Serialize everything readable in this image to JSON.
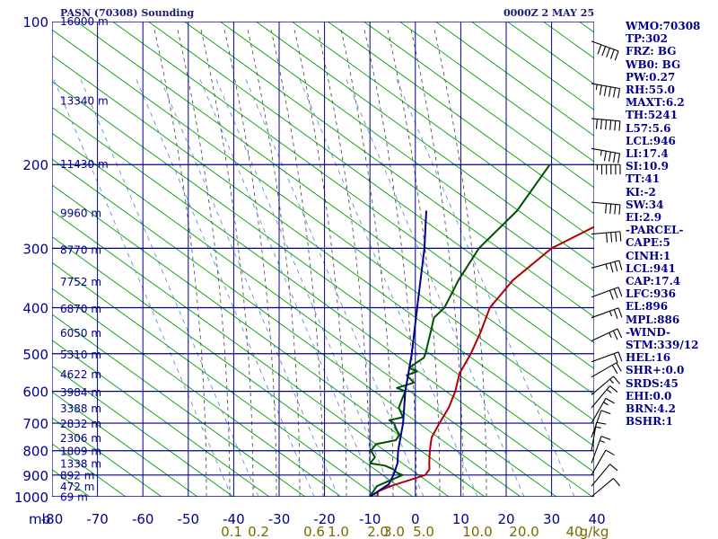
{
  "header": {
    "station": "PASN (70308) Sounding",
    "time": "0000Z  2 MAY 25"
  },
  "stats": [
    "WMO:70308",
    "TP:302",
    "FRZ: BG",
    "WB0: BG",
    "PW:0.27",
    "RH:55.0",
    "MAXT:6.2",
    "TH:5241",
    "L57:5.6",
    "LCL:946",
    "LI:17.4",
    "SI:10.9",
    "TT:41",
    "KI:-2",
    "SW:34",
    "EI:2.9",
    "-PARCEL-",
    "CAPE:5",
    "CINH:1",
    "LCL:941",
    "CAP:17.4",
    "LFC:936",
    "EL:896",
    "MPL:886",
    "-WIND-",
    "STM:339/12",
    "HEL:16",
    "SHR+:0.0",
    "SRDS:45",
    "EHI:0.0",
    "BRN:4.2",
    "BSHR:1"
  ],
  "chart_data": {
    "type": "skew-t",
    "ylabel": "mb",
    "pressure_levels": [
      100,
      200,
      300,
      400,
      500,
      600,
      700,
      800,
      900,
      1000
    ],
    "pressure_labels": [
      "100",
      "200",
      "300",
      "400",
      "500",
      "600",
      "700",
      "800",
      "900",
      "1000"
    ],
    "temperature_ticks": [
      -80,
      -70,
      -60,
      -50,
      -40,
      -30,
      -20,
      -10,
      0,
      10,
      20,
      30,
      40
    ],
    "temperature_labels": [
      "-80",
      "-70",
      "-60",
      "-50",
      "-40",
      "-30",
      "-20",
      "-10",
      "0",
      "10",
      "20",
      "30",
      "40"
    ],
    "xlim": [
      -80,
      40
    ],
    "height_labels": [
      {
        "p": 100,
        "text": "16000 m"
      },
      {
        "p": 147,
        "text": "13340 m"
      },
      {
        "p": 200,
        "text": "11430 m"
      },
      {
        "p": 253,
        "text": "9960 m"
      },
      {
        "p": 303,
        "text": "8770 m"
      },
      {
        "p": 353,
        "text": "7752 m"
      },
      {
        "p": 403,
        "text": "6870 m"
      },
      {
        "p": 453,
        "text": "6050 m"
      },
      {
        "p": 503,
        "text": "5310 m"
      },
      {
        "p": 553,
        "text": "4622 m"
      },
      {
        "p": 603,
        "text": "3984 m"
      },
      {
        "p": 653,
        "text": "3388 m"
      },
      {
        "p": 703,
        "text": "2832 m"
      },
      {
        "p": 753,
        "text": "2306 m"
      },
      {
        "p": 803,
        "text": "1809 m"
      },
      {
        "p": 853,
        "text": "1338 m"
      },
      {
        "p": 903,
        "text": "892 m"
      },
      {
        "p": 953,
        "text": "472 m"
      },
      {
        "p": 1003,
        "text": "69 m"
      }
    ],
    "mixing_ratio_labels": [
      {
        "w": 0.1,
        "text": "0.1"
      },
      {
        "w": 0.2,
        "text": "0.2"
      },
      {
        "w": 0.6,
        "text": "0.6"
      },
      {
        "w": 1.0,
        "text": "1.0"
      },
      {
        "w": 2.0,
        "text": "2.0"
      },
      {
        "w": 3.0,
        "text": "3.0"
      },
      {
        "w": 5.0,
        "text": "5.0"
      },
      {
        "w": 10.0,
        "text": "10.0"
      },
      {
        "w": 20.0,
        "text": "20.0"
      },
      {
        "w": 40.0,
        "text": "40"
      },
      {
        "unit": "g/kg",
        "text": "g/kg"
      }
    ],
    "mixing_ratio_values": [
      0.1,
      0.2,
      0.6,
      1.0,
      2.0,
      3.0,
      5.0,
      10.0,
      20.0,
      40.0
    ],
    "series": [
      {
        "name": "temperature",
        "color": "#b00000",
        "points": [
          [
            1005,
            -8
          ],
          [
            975,
            -10
          ],
          [
            950,
            -9
          ],
          [
            925,
            -7
          ],
          [
            900,
            -5
          ],
          [
            875,
            -6
          ],
          [
            850,
            -8
          ],
          [
            825,
            -10
          ],
          [
            800,
            -12
          ],
          [
            775,
            -14
          ],
          [
            750,
            -16
          ],
          [
            700,
            -19
          ],
          [
            650,
            -22
          ],
          [
            600,
            -26
          ],
          [
            550,
            -31
          ],
          [
            500,
            -35
          ],
          [
            450,
            -40
          ],
          [
            400,
            -46
          ],
          [
            350,
            -50
          ],
          [
            300,
            -52
          ],
          [
            250,
            -48
          ],
          [
            200,
            -44
          ],
          [
            150,
            -46
          ],
          [
            100,
            -50
          ]
        ]
      },
      {
        "name": "dewpoint",
        "color": "#005000",
        "points": [
          [
            1005,
            -10
          ],
          [
            975,
            -11
          ],
          [
            950,
            -12
          ],
          [
            925,
            -11
          ],
          [
            900,
            -10
          ],
          [
            890,
            -12
          ],
          [
            875,
            -14
          ],
          [
            860,
            -17
          ],
          [
            850,
            -21
          ],
          [
            825,
            -22
          ],
          [
            800,
            -25
          ],
          [
            775,
            -26
          ],
          [
            760,
            -23
          ],
          [
            740,
            -24
          ],
          [
            725,
            -26
          ],
          [
            700,
            -29
          ],
          [
            690,
            -31
          ],
          [
            680,
            -29
          ],
          [
            650,
            -33
          ],
          [
            625,
            -35
          ],
          [
            600,
            -37
          ],
          [
            590,
            -40
          ],
          [
            575,
            -38
          ],
          [
            555,
            -42
          ],
          [
            545,
            -41
          ],
          [
            535,
            -44
          ],
          [
            510,
            -44
          ],
          [
            500,
            -45
          ],
          [
            450,
            -51
          ],
          [
            420,
            -55
          ],
          [
            400,
            -56
          ],
          [
            350,
            -62
          ],
          [
            300,
            -68
          ],
          [
            250,
            -72
          ],
          [
            200,
            -80
          ]
        ]
      },
      {
        "name": "parcel",
        "color": "#00008b",
        "points": [
          [
            1005,
            -10
          ],
          [
            941,
            -10
          ],
          [
            900,
            -12
          ],
          [
            850,
            -15
          ],
          [
            800,
            -19
          ],
          [
            700,
            -27
          ],
          [
            600,
            -37
          ],
          [
            500,
            -48
          ],
          [
            400,
            -62
          ],
          [
            300,
            -80
          ],
          [
            250,
            -92
          ]
        ]
      }
    ],
    "wind_barbs": [
      {
        "p": 110,
        "dir": 290,
        "spd": 50
      },
      {
        "p": 135,
        "dir": 280,
        "spd": 55
      },
      {
        "p": 160,
        "dir": 275,
        "spd": 60
      },
      {
        "p": 185,
        "dir": 280,
        "spd": 45
      },
      {
        "p": 200,
        "dir": 270,
        "spd": 55
      },
      {
        "p": 240,
        "dir": 275,
        "spd": 40
      },
      {
        "p": 280,
        "dir": 265,
        "spd": 40
      },
      {
        "p": 330,
        "dir": 255,
        "spd": 35
      },
      {
        "p": 380,
        "dir": 250,
        "spd": 30
      },
      {
        "p": 420,
        "dir": 250,
        "spd": 25
      },
      {
        "p": 470,
        "dir": 245,
        "spd": 25
      },
      {
        "p": 520,
        "dir": 250,
        "spd": 20
      },
      {
        "p": 560,
        "dir": 240,
        "spd": 20
      },
      {
        "p": 610,
        "dir": 230,
        "spd": 15
      },
      {
        "p": 650,
        "dir": 220,
        "spd": 15
      },
      {
        "p": 700,
        "dir": 210,
        "spd": 15
      },
      {
        "p": 750,
        "dir": 200,
        "spd": 10
      },
      {
        "p": 800,
        "dir": 190,
        "spd": 15
      },
      {
        "p": 850,
        "dir": 200,
        "spd": 15
      },
      {
        "p": 900,
        "dir": 210,
        "spd": 10
      },
      {
        "p": 950,
        "dir": 220,
        "spd": 10
      },
      {
        "p": 1000,
        "dir": 230,
        "spd": 10
      }
    ],
    "colors": {
      "grid": "#00008b",
      "dry_adiabat": "#00a000",
      "moist_adiabat": "#404040",
      "mixing_ratio": "#5080d0",
      "temp_axis_label": "#00008b",
      "mixing_axis_label": "#7a6a00"
    }
  }
}
